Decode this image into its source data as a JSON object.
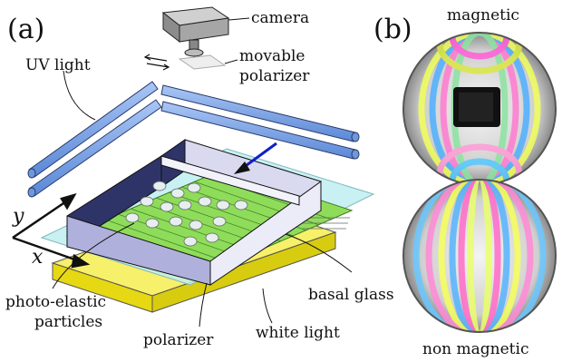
{
  "panel_a": {
    "label": "(a)",
    "camera": "camera",
    "movable_polarizer_line1": "movable",
    "movable_polarizer_line2": "polarizer",
    "uv_light": "UV light",
    "axis_y": "y",
    "axis_x": "x",
    "photo_elastic_line1": "photo-elastic",
    "photo_elastic_line2": "particles",
    "basal_glass": "basal glass",
    "polarizer": "polarizer",
    "white_light": "white light"
  },
  "panel_b": {
    "label": "(b)",
    "top_label": "magnetic",
    "bottom_label": "non magnetic"
  },
  "colors": {
    "uv_tube": "#7aa6e8",
    "glass": "#bfeff2",
    "green_plate": "#8fdc5a",
    "yellow_polarizer": "#f2ea1a",
    "frame_side": "#e8e8f6",
    "frame_dark": "#2f3468",
    "arrow_blue": "#1020c8"
  }
}
